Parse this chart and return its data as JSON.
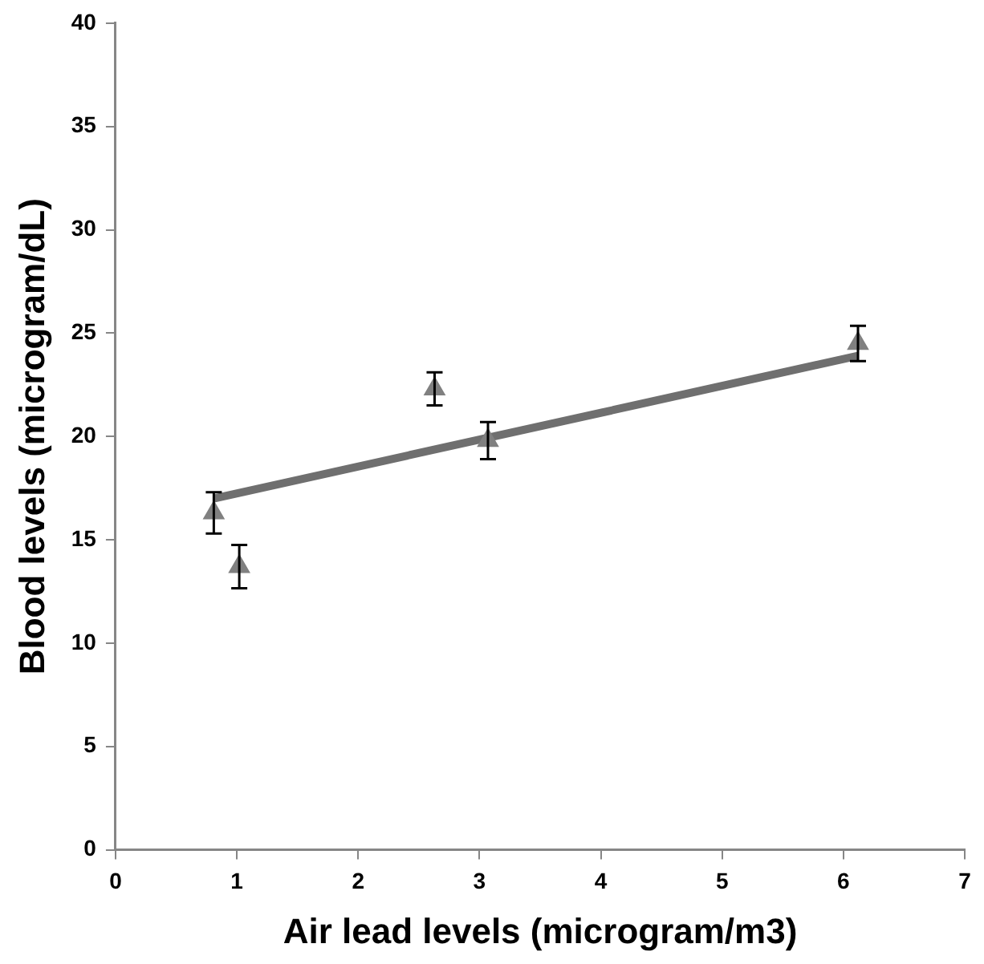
{
  "chart_data": {
    "type": "scatter",
    "xlabel": "Air lead levels (microgram/m3)",
    "ylabel": "Blood levels (microgram/dL)",
    "xlim": [
      0,
      7
    ],
    "xticks": [
      0,
      1,
      2,
      3,
      4,
      5,
      6,
      7
    ],
    "ylim": [
      0,
      40
    ],
    "yticks": [
      0,
      5,
      10,
      15,
      20,
      25,
      30,
      35,
      40
    ],
    "grid": false,
    "legend": false,
    "marker": "triangle",
    "series": [
      {
        "color": "#808080",
        "x": [
          0.81,
          1.02,
          2.63,
          3.07,
          6.12
        ],
        "values": [
          16.3,
          13.7,
          22.3,
          19.8,
          24.5
        ],
        "errors": [
          1.0,
          1.05,
          0.8,
          0.9,
          0.85
        ]
      },
      {
        "type": "line",
        "color": "#6f6f6f",
        "x": [
          0.81,
          6.12
        ],
        "values": [
          17.0,
          23.9
        ],
        "marker": "none"
      }
    ]
  }
}
